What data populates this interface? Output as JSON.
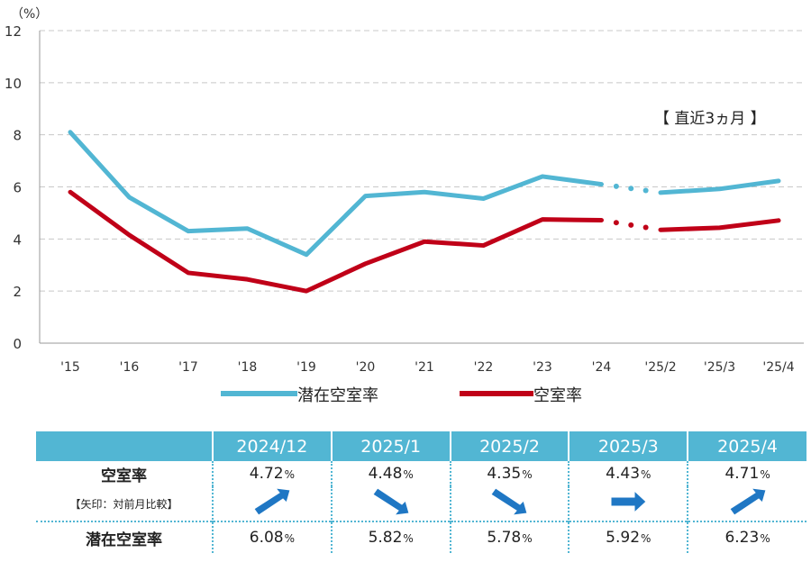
{
  "chart_data": {
    "type": "line",
    "unit_label": "（%）",
    "ylim": [
      0,
      12
    ],
    "yticks": [
      "0",
      "2",
      "4",
      "6",
      "8",
      "10",
      "12"
    ],
    "categories": [
      "'15",
      "'16",
      "'17",
      "'18",
      "'19",
      "'20",
      "'21",
      "'22",
      "'23",
      "'24",
      "'25/2",
      "'25/3",
      "'25/4"
    ],
    "annotation": "【 直近3ヵ月 】",
    "series": [
      {
        "name": "潜在空室率",
        "color": "#52b6d3",
        "values": [
          8.1,
          5.6,
          4.3,
          4.4,
          3.4,
          5.65,
          5.8,
          5.55,
          6.4,
          6.1,
          5.78,
          5.92,
          6.23
        ]
      },
      {
        "name": "空室率",
        "color": "#c00018",
        "values": [
          5.8,
          4.15,
          2.7,
          2.45,
          2.0,
          3.05,
          3.9,
          3.75,
          4.75,
          4.72,
          4.35,
          4.43,
          4.71
        ]
      }
    ],
    "dashed_segment": [
      9,
      10
    ],
    "grid": "horizontal-dashed",
    "legend": "bottom"
  },
  "table": {
    "columns": [
      "2024/12",
      "2025/1",
      "2025/2",
      "2025/3",
      "2025/4"
    ],
    "row1_label": "空室率",
    "row2_label": "【矢印：対前月比較】",
    "row3_label": "潜在空室率",
    "vacancy": [
      "4.72",
      "4.48",
      "4.35",
      "4.43",
      "4.71"
    ],
    "potential": [
      "6.08",
      "5.82",
      "5.78",
      "5.92",
      "6.23"
    ],
    "pct": "%",
    "arrows": [
      "up-right",
      "down-right",
      "down-right",
      "right",
      "up-right"
    ],
    "arrow_color": "#1f77c4"
  }
}
